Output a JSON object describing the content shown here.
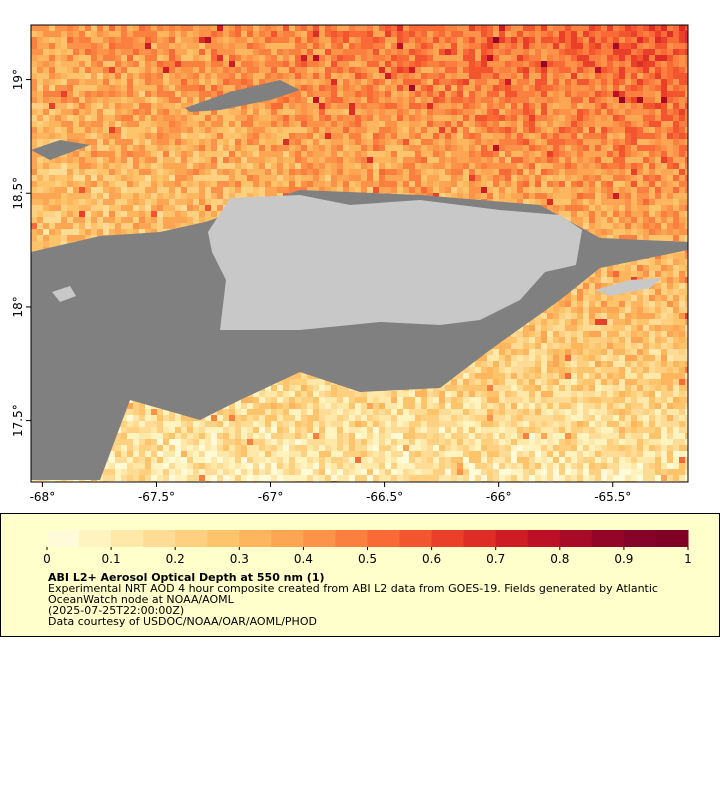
{
  "map": {
    "xlim": [
      -68.05,
      -65.17
    ],
    "ylim": [
      17.23,
      19.24
    ],
    "xticks": [
      {
        "value": -68,
        "label": "-68°"
      },
      {
        "value": -67.5,
        "label": "-67.5°"
      },
      {
        "value": -67,
        "label": "-67°"
      },
      {
        "value": -66.5,
        "label": "-66.5°"
      },
      {
        "value": -66,
        "label": "-66°"
      },
      {
        "value": -65.5,
        "label": "-65.5°"
      }
    ],
    "yticks": [
      {
        "value": 17.5,
        "label": "17.5°"
      },
      {
        "value": 18,
        "label": "18°"
      },
      {
        "value": 18.5,
        "label": "18.5°"
      },
      {
        "value": 19,
        "label": "19°"
      }
    ]
  },
  "colorbar": {
    "range": [
      0,
      1
    ],
    "ticks": [
      0,
      0.1,
      0.2,
      0.3,
      0.4,
      0.5,
      0.6,
      0.7,
      0.8,
      0.9,
      1
    ],
    "colors": [
      "#fffbd8",
      "#fff3c0",
      "#ffe8a8",
      "#fedc95",
      "#fed080",
      "#fdc46c",
      "#fdb55e",
      "#fca552",
      "#fc9348",
      "#fb7f3f",
      "#f96a36",
      "#f3552f",
      "#ea3f29",
      "#de2c26",
      "#cf1c24",
      "#bd1026",
      "#a70b28",
      "#930627",
      "#860329",
      "#800026"
    ]
  },
  "caption": {
    "title": "ABI L2+ Aerosol Optical Depth at 550 nm (1)",
    "lines": [
      "Experimental NRT AOD 4 hour composite created from ABI L2 data from GOES-19. Fields generated by Atlantic",
      "OceanWatch node at NOAA/AOML",
      "(2025-07-25T22:00:00Z)",
      "Data courtesy of USDOC/NOAA/OAR/AOML/PHOD"
    ]
  }
}
